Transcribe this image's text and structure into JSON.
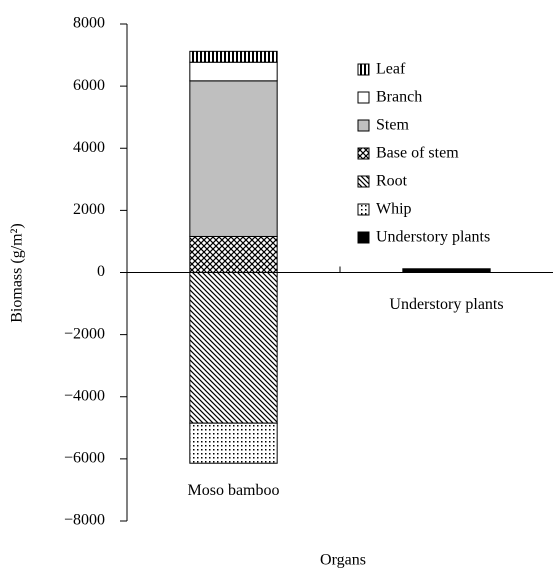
{
  "chart_data": {
    "type": "bar",
    "stacked": true,
    "y_label": "Biomass (g/m²)",
    "x_label": "Organs",
    "categories": [
      "Moso bamboo",
      "Understory plants"
    ],
    "series": [
      {
        "name": "Leaf",
        "color": "#000000",
        "pattern": "vertical",
        "values": [
          350,
          null
        ]
      },
      {
        "name": "Branch",
        "color": "#ffffff",
        "pattern": "none",
        "values": [
          600,
          null
        ]
      },
      {
        "name": "Stem",
        "color": "#bfbfbf",
        "pattern": "none",
        "values": [
          5010,
          null
        ]
      },
      {
        "name": "Base of stem",
        "color": "#000000",
        "pattern": "crosshatch",
        "values": [
          1160,
          null
        ]
      },
      {
        "name": "Root",
        "color": "#000000",
        "pattern": "diagonal",
        "values": [
          -4850,
          null
        ]
      },
      {
        "name": "Whip",
        "color": "#000000",
        "pattern": "dots",
        "values": [
          -1290,
          null
        ]
      },
      {
        "name": "Understory plants",
        "color": "#000000",
        "pattern": "solid",
        "values": [
          null,
          120
        ]
      }
    ],
    "ylim": [
      -8000,
      8000
    ],
    "yticks": [
      {
        "value": -8000,
        "label": "−8000"
      },
      {
        "value": -6000,
        "label": "−6000"
      },
      {
        "value": -4000,
        "label": "−4000"
      },
      {
        "value": -2000,
        "label": "−2000"
      },
      0,
      2000,
      4000,
      6000,
      8000
    ],
    "grid": false,
    "legend": "upper right"
  }
}
